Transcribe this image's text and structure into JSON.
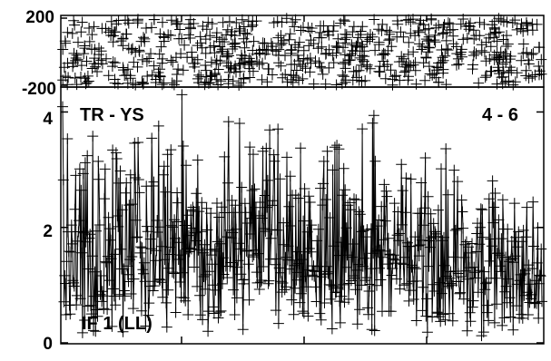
{
  "chart_data": [
    {
      "type": "scatter",
      "panel": "phase",
      "title": "",
      "xlabel": "",
      "ylabel": "",
      "ylim": [
        -200,
        200
      ],
      "yticks": [
        "200",
        "-200"
      ],
      "marker": "plus",
      "line": false,
      "color": "#000000",
      "n_points": 700,
      "distribution": "uniform random across full range (noise)"
    },
    {
      "type": "line",
      "panel": "amplitude",
      "title": "",
      "xlabel": "",
      "ylabel": "",
      "ylim": [
        0,
        4.4
      ],
      "yticks": [
        "0",
        "2",
        "4"
      ],
      "marker": "plus",
      "line": true,
      "color": "#000000",
      "n_points": 700,
      "trend": [
        [
          0.0,
          1.5
        ],
        [
          0.25,
          1.7
        ],
        [
          0.5,
          1.6
        ],
        [
          0.75,
          1.45
        ],
        [
          1.0,
          1.2
        ]
      ],
      "peak_max": 4.3,
      "annotations": {
        "baseline": "TR - YS",
        "channels": "4 - 6",
        "polarization": "IF 1 (LL)"
      }
    }
  ]
}
